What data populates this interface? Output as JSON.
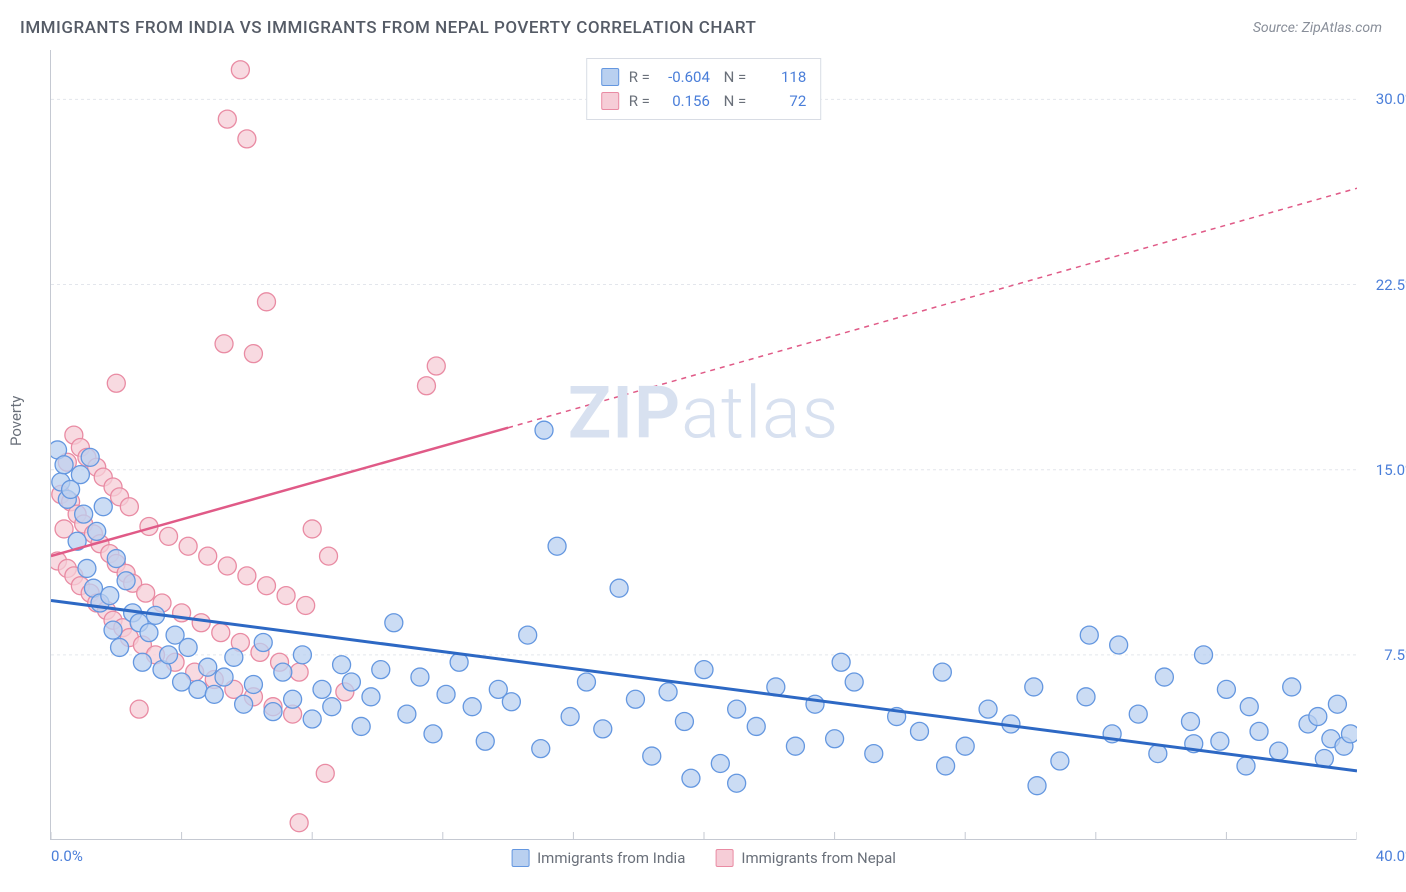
{
  "title": "IMMIGRANTS FROM INDIA VS IMMIGRANTS FROM NEPAL POVERTY CORRELATION CHART",
  "source": "Source: ZipAtlas.com",
  "watermark_a": "ZIP",
  "watermark_b": "atlas",
  "ylabel": "Poverty",
  "chart": {
    "type": "scatter",
    "xlim": [
      0,
      40
    ],
    "ylim": [
      0,
      32
    ],
    "yticks": [
      {
        "v": 7.5,
        "label": "7.5%"
      },
      {
        "v": 15.0,
        "label": "15.0%"
      },
      {
        "v": 22.5,
        "label": "22.5%"
      },
      {
        "v": 30.0,
        "label": "30.0%"
      }
    ],
    "x_start_label": "0.0%",
    "x_end_label": "40.0%",
    "xtick_minor": [
      0,
      4,
      8,
      12,
      16,
      20,
      24,
      28,
      32,
      36,
      40
    ],
    "grid_color": "#e3e6ec",
    "grid_dash": "3,3",
    "marker_radius": 9,
    "marker_stroke_width": 1.3,
    "series": [
      {
        "key": "india",
        "label": "Immigrants from India",
        "fill": "#b9d0f0",
        "stroke": "#6497e0",
        "line_color": "#2d68c4",
        "line_width": 3,
        "line_dash": "none",
        "R": "-0.604",
        "N": "118",
        "trend": {
          "x1": 0,
          "y1": 9.7,
          "x2": 40,
          "y2": 2.8
        },
        "points": [
          [
            0.2,
            15.8
          ],
          [
            0.3,
            14.5
          ],
          [
            0.4,
            15.2
          ],
          [
            0.5,
            13.8
          ],
          [
            0.6,
            14.2
          ],
          [
            0.8,
            12.1
          ],
          [
            0.9,
            14.8
          ],
          [
            1.0,
            13.2
          ],
          [
            1.1,
            11.0
          ],
          [
            1.2,
            15.5
          ],
          [
            1.3,
            10.2
          ],
          [
            1.4,
            12.5
          ],
          [
            1.5,
            9.6
          ],
          [
            1.6,
            13.5
          ],
          [
            1.8,
            9.9
          ],
          [
            1.9,
            8.5
          ],
          [
            2.0,
            11.4
          ],
          [
            2.1,
            7.8
          ],
          [
            2.3,
            10.5
          ],
          [
            2.5,
            9.2
          ],
          [
            2.7,
            8.8
          ],
          [
            2.8,
            7.2
          ],
          [
            3.0,
            8.4
          ],
          [
            3.2,
            9.1
          ],
          [
            3.4,
            6.9
          ],
          [
            3.6,
            7.5
          ],
          [
            3.8,
            8.3
          ],
          [
            4.0,
            6.4
          ],
          [
            4.2,
            7.8
          ],
          [
            4.5,
            6.1
          ],
          [
            4.8,
            7.0
          ],
          [
            5.0,
            5.9
          ],
          [
            5.3,
            6.6
          ],
          [
            5.6,
            7.4
          ],
          [
            5.9,
            5.5
          ],
          [
            6.2,
            6.3
          ],
          [
            6.5,
            8.0
          ],
          [
            6.8,
            5.2
          ],
          [
            7.1,
            6.8
          ],
          [
            7.4,
            5.7
          ],
          [
            7.7,
            7.5
          ],
          [
            8.0,
            4.9
          ],
          [
            8.3,
            6.1
          ],
          [
            8.6,
            5.4
          ],
          [
            8.9,
            7.1
          ],
          [
            9.2,
            6.4
          ],
          [
            9.5,
            4.6
          ],
          [
            9.8,
            5.8
          ],
          [
            10.1,
            6.9
          ],
          [
            10.5,
            8.8
          ],
          [
            10.9,
            5.1
          ],
          [
            11.3,
            6.6
          ],
          [
            11.7,
            4.3
          ],
          [
            12.1,
            5.9
          ],
          [
            12.5,
            7.2
          ],
          [
            12.9,
            5.4
          ],
          [
            13.3,
            4.0
          ],
          [
            13.7,
            6.1
          ],
          [
            14.1,
            5.6
          ],
          [
            14.6,
            8.3
          ],
          [
            15.0,
            3.7
          ],
          [
            15.1,
            16.6
          ],
          [
            15.5,
            11.9
          ],
          [
            15.9,
            5.0
          ],
          [
            16.4,
            6.4
          ],
          [
            16.9,
            4.5
          ],
          [
            17.4,
            10.2
          ],
          [
            17.9,
            5.7
          ],
          [
            18.4,
            3.4
          ],
          [
            18.9,
            6.0
          ],
          [
            19.4,
            4.8
          ],
          [
            19.6,
            2.5
          ],
          [
            20.0,
            6.9
          ],
          [
            20.5,
            3.1
          ],
          [
            21.0,
            5.3
          ],
          [
            21.0,
            2.3
          ],
          [
            21.6,
            4.6
          ],
          [
            22.2,
            6.2
          ],
          [
            22.8,
            3.8
          ],
          [
            23.4,
            5.5
          ],
          [
            24.0,
            4.1
          ],
          [
            24.2,
            7.2
          ],
          [
            24.6,
            6.4
          ],
          [
            25.2,
            3.5
          ],
          [
            25.9,
            5.0
          ],
          [
            26.6,
            4.4
          ],
          [
            27.3,
            6.8
          ],
          [
            27.4,
            3.0
          ],
          [
            28.0,
            3.8
          ],
          [
            28.7,
            5.3
          ],
          [
            29.4,
            4.7
          ],
          [
            30.1,
            6.2
          ],
          [
            30.2,
            2.2
          ],
          [
            30.9,
            3.2
          ],
          [
            31.7,
            5.8
          ],
          [
            31.8,
            8.3
          ],
          [
            32.5,
            4.3
          ],
          [
            32.7,
            7.9
          ],
          [
            33.3,
            5.1
          ],
          [
            33.9,
            3.5
          ],
          [
            34.1,
            6.6
          ],
          [
            34.9,
            4.8
          ],
          [
            35.0,
            3.9
          ],
          [
            35.3,
            7.5
          ],
          [
            35.8,
            4.0
          ],
          [
            36.0,
            6.1
          ],
          [
            36.6,
            3.0
          ],
          [
            36.7,
            5.4
          ],
          [
            37.0,
            4.4
          ],
          [
            37.6,
            3.6
          ],
          [
            38.0,
            6.2
          ],
          [
            38.5,
            4.7
          ],
          [
            38.8,
            5.0
          ],
          [
            39.0,
            3.3
          ],
          [
            39.2,
            4.1
          ],
          [
            39.4,
            5.5
          ],
          [
            39.6,
            3.8
          ],
          [
            39.8,
            4.3
          ]
        ]
      },
      {
        "key": "nepal",
        "label": "Immigrants from Nepal",
        "fill": "#f6cdd7",
        "stroke": "#e98ba3",
        "line_color": "#e05a87",
        "line_width": 2.5,
        "line_dash": "none",
        "ext_dash": "5,5",
        "R": "0.156",
        "N": "72",
        "trend_solid": {
          "x1": 0,
          "y1": 11.5,
          "x2": 14,
          "y2": 16.7
        },
        "trend_dash": {
          "x1": 14,
          "y1": 16.7,
          "x2": 40,
          "y2": 26.4
        },
        "points": [
          [
            0.2,
            11.3
          ],
          [
            0.3,
            14.0
          ],
          [
            0.4,
            12.6
          ],
          [
            0.5,
            15.3
          ],
          [
            0.5,
            11.0
          ],
          [
            0.6,
            13.7
          ],
          [
            0.7,
            16.4
          ],
          [
            0.7,
            10.7
          ],
          [
            0.8,
            13.2
          ],
          [
            0.9,
            15.9
          ],
          [
            0.9,
            10.3
          ],
          [
            1.0,
            12.8
          ],
          [
            1.1,
            15.5
          ],
          [
            1.2,
            10.0
          ],
          [
            1.3,
            12.4
          ],
          [
            1.4,
            15.1
          ],
          [
            1.4,
            9.6
          ],
          [
            1.5,
            12.0
          ],
          [
            1.6,
            14.7
          ],
          [
            1.7,
            9.3
          ],
          [
            1.8,
            11.6
          ],
          [
            1.9,
            14.3
          ],
          [
            1.9,
            8.9
          ],
          [
            2.0,
            11.2
          ],
          [
            2.0,
            18.5
          ],
          [
            2.1,
            13.9
          ],
          [
            2.2,
            8.6
          ],
          [
            2.3,
            10.8
          ],
          [
            2.4,
            13.5
          ],
          [
            2.4,
            8.2
          ],
          [
            2.5,
            10.4
          ],
          [
            2.7,
            5.3
          ],
          [
            2.8,
            7.9
          ],
          [
            2.9,
            10.0
          ],
          [
            3.0,
            12.7
          ],
          [
            3.2,
            7.5
          ],
          [
            3.4,
            9.6
          ],
          [
            3.6,
            12.3
          ],
          [
            3.8,
            7.2
          ],
          [
            4.0,
            9.2
          ],
          [
            4.2,
            11.9
          ],
          [
            4.4,
            6.8
          ],
          [
            4.6,
            8.8
          ],
          [
            4.8,
            11.5
          ],
          [
            5.0,
            6.5
          ],
          [
            5.2,
            8.4
          ],
          [
            5.3,
            20.1
          ],
          [
            5.4,
            29.2
          ],
          [
            5.4,
            11.1
          ],
          [
            5.6,
            6.1
          ],
          [
            5.8,
            8.0
          ],
          [
            5.8,
            31.2
          ],
          [
            6.0,
            10.7
          ],
          [
            6.0,
            28.4
          ],
          [
            6.2,
            5.8
          ],
          [
            6.2,
            19.7
          ],
          [
            6.4,
            7.6
          ],
          [
            6.6,
            10.3
          ],
          [
            6.6,
            21.8
          ],
          [
            6.8,
            5.4
          ],
          [
            7.0,
            7.2
          ],
          [
            7.2,
            9.9
          ],
          [
            7.4,
            5.1
          ],
          [
            7.6,
            6.8
          ],
          [
            7.6,
            0.7
          ],
          [
            7.8,
            9.5
          ],
          [
            8.0,
            12.6
          ],
          [
            8.4,
            2.7
          ],
          [
            8.5,
            11.5
          ],
          [
            9.0,
            6.0
          ],
          [
            11.5,
            18.4
          ],
          [
            11.8,
            19.2
          ]
        ]
      }
    ]
  }
}
